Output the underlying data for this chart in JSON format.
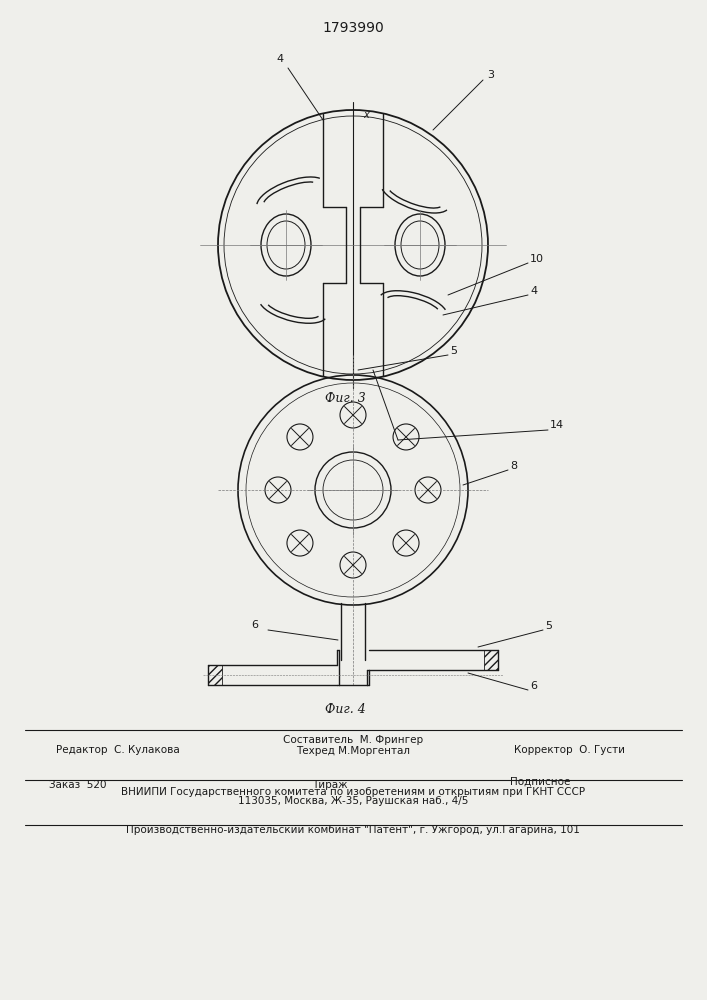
{
  "patent_number": "1793990",
  "fig3_label": "Фиг. 3",
  "fig4_label": "Фиг. 4",
  "footer_line1": "Составитель  М. Фрингер",
  "footer_line2": "Техред М.Моргентал",
  "footer_editor": "Редактор  С. Кулакова",
  "footer_corrector": "Корректор  О. Густи",
  "footer_order": "Заказ  520",
  "footer_tirazh": "Тираж",
  "footer_podpisnoe": "Подписное",
  "footer_vniiipi": "ВНИИПИ Государственного комитета по изобретениям и открытиям при ГКНТ СССР",
  "footer_address": "113035, Москва, Ж-35, Раушская наб., 4/5",
  "footer_factory": "Производственно-издательский комбинат \"Патент\", г. Ужгород, ул.Гагарина, 101",
  "line_color": "#1a1a1a",
  "bg_color": "#efefeb",
  "center_line_color": "#777777"
}
